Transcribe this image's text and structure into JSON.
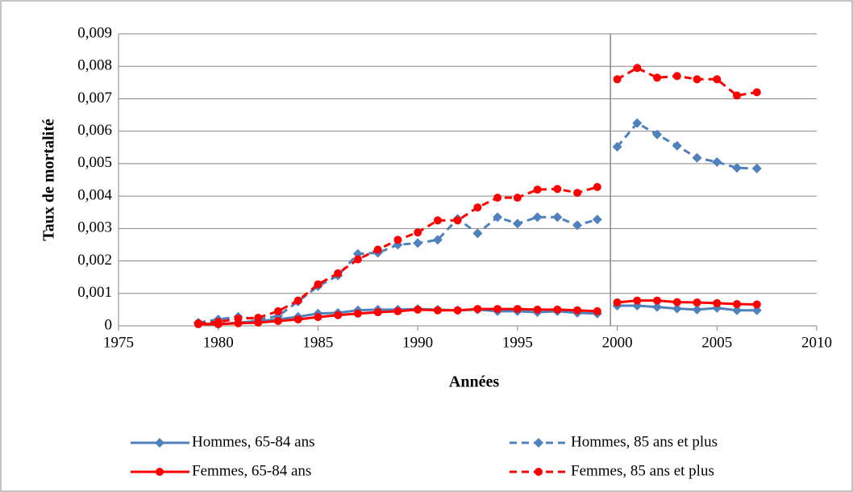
{
  "chart_data": {
    "type": "line",
    "xlabel": "Années",
    "ylabel": "Taux de mortalité",
    "x": [
      1979,
      1980,
      1981,
      1982,
      1983,
      1984,
      1985,
      1986,
      1987,
      1988,
      1989,
      1990,
      1991,
      1992,
      1993,
      1994,
      1995,
      1996,
      1997,
      1998,
      1999,
      2000,
      2001,
      2002,
      2003,
      2004,
      2005,
      2006,
      2007
    ],
    "series": [
      {
        "name": "Hommes, 65-84 ans",
        "color": "#4f81bd",
        "dashed": false,
        "marker": "diamond",
        "values": [
          8e-05,
          5e-05,
          0.0001,
          0.00015,
          0.0002,
          0.00028,
          0.00038,
          0.0004,
          0.00048,
          0.0005,
          0.0005,
          0.00052,
          0.0005,
          0.00048,
          0.0005,
          0.00045,
          0.00045,
          0.00042,
          0.00045,
          0.0004,
          0.00038,
          0.00062,
          0.00062,
          0.00058,
          0.00053,
          0.0005,
          0.00055,
          0.00048,
          0.00048
        ]
      },
      {
        "name": "Hommes, 85 ans et plus",
        "color": "#4f81bd",
        "dashed": true,
        "marker": "diamond",
        "values": [
          0.0001,
          0.0002,
          0.00028,
          0.0002,
          0.0003,
          0.00075,
          0.00122,
          0.00155,
          0.00222,
          0.00225,
          0.0025,
          0.00255,
          0.00265,
          0.0033,
          0.00285,
          0.00335,
          0.00315,
          0.00335,
          0.00335,
          0.0031,
          0.00328,
          0.00552,
          0.00625,
          0.0059,
          0.00555,
          0.00518,
          0.00505,
          0.00487,
          0.00485
        ]
      },
      {
        "name": "Femmes, 65-84 ans",
        "color": "#ff0000",
        "dashed": false,
        "marker": "circle",
        "values": [
          5e-05,
          5e-05,
          8e-05,
          0.0001,
          0.00015,
          0.0002,
          0.00027,
          0.00033,
          0.00038,
          0.00042,
          0.00045,
          0.0005,
          0.00048,
          0.00048,
          0.00052,
          0.00052,
          0.00052,
          0.0005,
          0.0005,
          0.00048,
          0.00045,
          0.00072,
          0.00078,
          0.00078,
          0.00073,
          0.00072,
          0.0007,
          0.00067,
          0.00066
        ]
      },
      {
        "name": "Femmes, 85 ans et plus",
        "color": "#ff0000",
        "dashed": true,
        "marker": "circle",
        "values": [
          8e-05,
          0.00012,
          0.00022,
          0.00025,
          0.00045,
          0.00078,
          0.00128,
          0.00162,
          0.00205,
          0.00235,
          0.00265,
          0.00288,
          0.00325,
          0.00325,
          0.00365,
          0.00395,
          0.00395,
          0.0042,
          0.00422,
          0.0041,
          0.00428,
          0.0076,
          0.00795,
          0.00765,
          0.0077,
          0.0076,
          0.0076,
          0.0071,
          0.0072
        ]
      }
    ],
    "xlim": [
      1975,
      2010
    ],
    "xticks": [
      1975,
      1980,
      1985,
      1990,
      1995,
      2000,
      2005,
      2010
    ],
    "ylim": [
      0,
      0.009
    ],
    "yticks": [
      0,
      {
        "value": 0.001,
        "label": "0,001"
      },
      {
        "value": 0.002,
        "label": "0,002"
      },
      {
        "value": 0.003,
        "label": "0,003"
      },
      {
        "value": 0.004,
        "label": "0,004"
      },
      {
        "value": 0.005,
        "label": "0,005"
      },
      {
        "value": 0.006,
        "label": "0,006"
      },
      {
        "value": 0.007,
        "label": "0,007"
      },
      {
        "value": 0.008,
        "label": "0,008"
      },
      {
        "value": 0.009,
        "label": "0,009"
      }
    ],
    "grid": true,
    "vline": 1999.66,
    "legend": "bottom"
  }
}
